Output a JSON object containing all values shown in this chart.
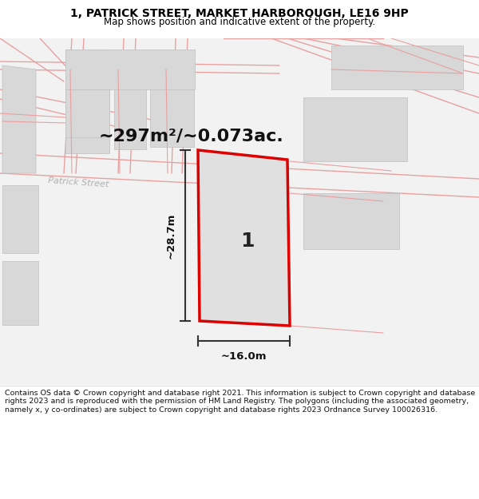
{
  "title": "1, PATRICK STREET, MARKET HARBOROUGH, LE16 9HP",
  "subtitle": "Map shows position and indicative extent of the property.",
  "area_text": "~297m²/~0.073ac.",
  "plot_number": "1",
  "width_label": "~16.0m",
  "height_label": "~28.7m",
  "map_bg": "#f2f2f2",
  "plot_fill": "#e8e8e8",
  "plot_edge": "#dd0000",
  "street_line_color": "#e8a0a0",
  "building_fill": "#d8d8d8",
  "building_edge": "#c0c0c0",
  "footer_text": "Contains OS data © Crown copyright and database right 2021. This information is subject to Crown copyright and database rights 2023 and is reproduced with the permission of HM Land Registry. The polygons (including the associated geometry, namely x, y co-ordinates) are subject to Crown copyright and database rights 2023 Ordnance Survey 100026316.",
  "title_fontsize": 10,
  "subtitle_fontsize": 8.5,
  "area_fontsize": 16,
  "footer_fontsize": 6.8
}
